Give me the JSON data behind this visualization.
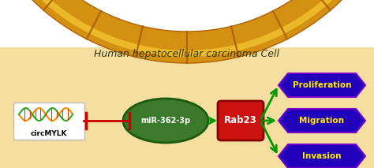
{
  "title": "Human hepatocellular carcinoma Cell",
  "title_fontsize": 9,
  "title_style": "italic",
  "bg_outer": "#FFFFFF",
  "bg_cell": "#F5DFA0",
  "membrane_fill": "#D49010",
  "membrane_highlight": "#F0C030",
  "membrane_dark": "#B06000",
  "circMYLK_box_fc": "#FFFFFF",
  "circMYLK_box_ec": "#CCCCCC",
  "circMYLK_label": "circMYLK",
  "miR_ellipse_fc": "#3A7A2A",
  "miR_ellipse_ec": "#1A5A0A",
  "miR_label": "miR-362-3p",
  "rab23_box_fc": "#CC1111",
  "rab23_box_ec": "#880000",
  "rab23_label": "Rab23",
  "outcome_fc": "#2200BB",
  "outcome_ec": "#7700CC",
  "outcome_labels": [
    "Proliferation",
    "Migration",
    "Invasion"
  ],
  "outcome_text_color": "#FFEE00",
  "inhibit_line_color": "#CC0000",
  "activate_arrow_color": "#009900",
  "dna_color1": "#FF8800",
  "dna_color2": "#22AA22",
  "dna_cross": "#CC4400",
  "figsize": [
    4.74,
    2.13
  ],
  "dpi": 100
}
